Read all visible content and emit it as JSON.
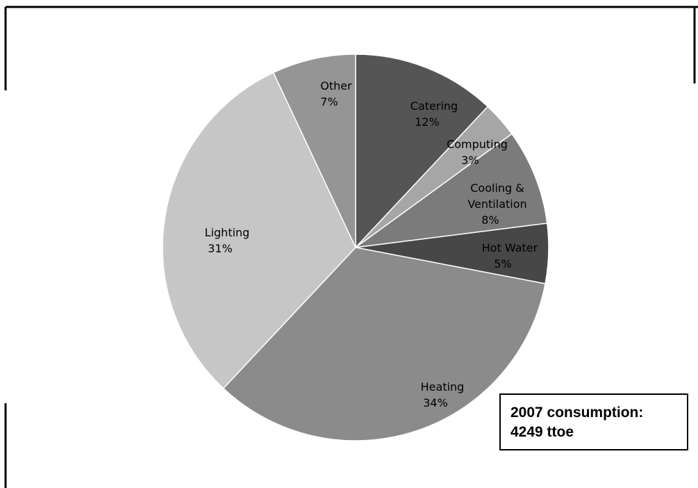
{
  "chart_data": {
    "type": "pie",
    "title": "",
    "slices": [
      {
        "label": "Catering",
        "value": 12,
        "value_label": "12%",
        "color": "#555555"
      },
      {
        "label": "Computing",
        "value": 3,
        "value_label": "3%",
        "color": "#a6a6a6"
      },
      {
        "label": "Cooling &\nVentilation",
        "value": 8,
        "value_label": "8%",
        "color": "#7b7b7b"
      },
      {
        "label": "Hot Water",
        "value": 5,
        "value_label": "5%",
        "color": "#474747"
      },
      {
        "label": "Heating",
        "value": 34,
        "value_label": "34%",
        "color": "#8b8b8b"
      },
      {
        "label": "Lighting",
        "value": 31,
        "value_label": "31%",
        "color": "#c6c6c6"
      },
      {
        "label": "Other",
        "value": 7,
        "value_label": "7%",
        "color": "#959595"
      }
    ],
    "start_angle_deg": 0,
    "direction": "clockwise",
    "legend": "none",
    "annotation": {
      "line1": "2007 consumption:",
      "line2": "4249 ttoe"
    }
  }
}
